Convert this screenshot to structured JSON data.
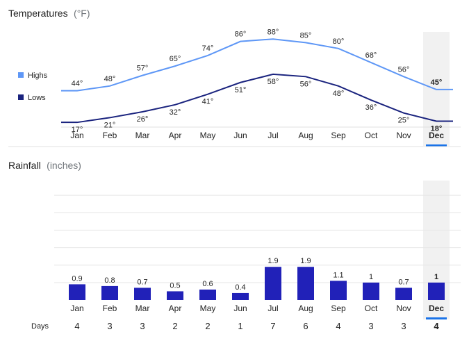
{
  "temperature_section": {
    "title": "Temperatures",
    "unit": "(°F)",
    "legend": {
      "highs": "Highs",
      "lows": "Lows"
    }
  },
  "rainfall_section": {
    "title": "Rainfall",
    "unit": "(inches)",
    "days_label": "Days"
  },
  "selected_month": "Dec",
  "colors": {
    "highs": "#5e97f6",
    "lows": "#1a237e",
    "rain_bar": "#2121b8",
    "selected": "#1a73e8",
    "highlight_bg": "#f1f1f1",
    "grid": "#e6e6e6"
  },
  "chart_data": [
    {
      "type": "line",
      "title": "Temperatures (°F)",
      "categories": [
        "Jan",
        "Feb",
        "Mar",
        "Apr",
        "May",
        "Jun",
        "Jul",
        "Aug",
        "Sep",
        "Oct",
        "Nov",
        "Dec"
      ],
      "series": [
        {
          "name": "Highs",
          "values": [
            44,
            48,
            57,
            65,
            74,
            86,
            88,
            85,
            80,
            68,
            56,
            45
          ],
          "labels": [
            "44°",
            "48°",
            "57°",
            "65°",
            "74°",
            "86°",
            "88°",
            "85°",
            "80°",
            "68°",
            "56°",
            "45°"
          ]
        },
        {
          "name": "Lows",
          "values": [
            17,
            21,
            26,
            32,
            41,
            51,
            58,
            56,
            48,
            36,
            25,
            18
          ],
          "labels": [
            "17°",
            "21°",
            "26°",
            "32°",
            "41°",
            "51°",
            "58°",
            "56°",
            "48°",
            "36°",
            "25°",
            "18°"
          ]
        }
      ],
      "ylim": [
        10,
        100
      ],
      "xlabel": "",
      "ylabel": "",
      "legend": "left"
    },
    {
      "type": "bar",
      "title": "Rainfall (inches)",
      "categories": [
        "Jan",
        "Feb",
        "Mar",
        "Apr",
        "May",
        "Jun",
        "Jul",
        "Aug",
        "Sep",
        "Oct",
        "Nov",
        "Dec"
      ],
      "values": [
        0.9,
        0.8,
        0.7,
        0.5,
        0.6,
        0.4,
        1.9,
        1.9,
        1.1,
        1,
        0.7,
        1
      ],
      "value_labels": [
        "0.9",
        "0.8",
        "0.7",
        "0.5",
        "0.6",
        "0.4",
        "1.9",
        "1.9",
        "1.1",
        "1",
        "0.7",
        "1"
      ],
      "days": [
        4,
        3,
        3,
        2,
        2,
        1,
        7,
        6,
        4,
        3,
        3,
        4
      ],
      "days_labels": [
        "4",
        "3",
        "3",
        "2",
        "2",
        "1",
        "7",
        "6",
        "4",
        "3",
        "3",
        "4"
      ],
      "ylim": [
        0,
        7
      ],
      "grid": true
    }
  ]
}
